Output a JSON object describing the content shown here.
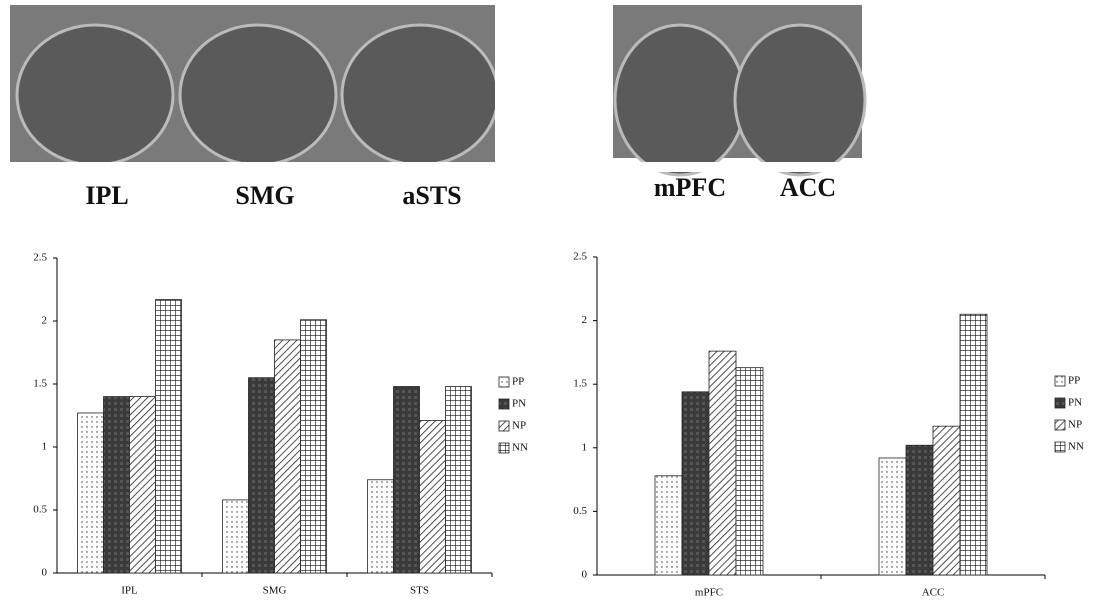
{
  "image_labels": [
    "IPL",
    "SMG",
    "aSTS",
    "mPFC",
    "ACC"
  ],
  "chart_data": [
    {
      "type": "bar",
      "categories": [
        "IPL",
        "SMG",
        "STS"
      ],
      "series": [
        {
          "name": "PP",
          "values": [
            1.27,
            0.58,
            0.74
          ]
        },
        {
          "name": "PN",
          "values": [
            1.4,
            1.55,
            1.48
          ]
        },
        {
          "name": "NP",
          "values": [
            1.4,
            1.85,
            1.21
          ]
        },
        {
          "name": "NN",
          "values": [
            2.17,
            2.01,
            1.48
          ]
        }
      ],
      "ylim": [
        0,
        2.5
      ],
      "yticks": [
        0,
        0.5,
        1,
        1.5,
        2,
        2.5
      ],
      "legend": "right"
    },
    {
      "type": "bar",
      "categories": [
        "mPFC",
        "ACC"
      ],
      "series": [
        {
          "name": "PP",
          "values": [
            0.78,
            0.92
          ]
        },
        {
          "name": "PN",
          "values": [
            1.44,
            1.02
          ]
        },
        {
          "name": "NP",
          "values": [
            1.76,
            1.17
          ]
        },
        {
          "name": "NN",
          "values": [
            1.63,
            2.05
          ]
        }
      ],
      "ylim": [
        0,
        2.5
      ],
      "yticks": [
        0,
        0.5,
        1,
        1.5,
        2,
        2.5
      ],
      "legend": "right"
    }
  ]
}
